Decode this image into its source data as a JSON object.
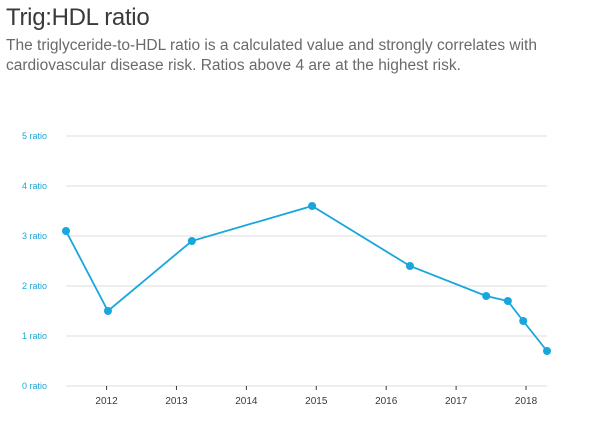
{
  "header": {
    "title": "Trig:HDL ratio",
    "subtitle": "The triglyceride-to-HDL ratio is a calculated value and strongly correlates with cardiovascular disease risk. Ratios above 4 are at the highest risk."
  },
  "colors": {
    "accent": "#17a7dc",
    "grid": "#dedede",
    "title": "#3a3a3a",
    "subtitle": "#6a6a6a"
  },
  "chart_data": {
    "type": "line",
    "title": "Trig:HDL ratio",
    "xlabel": "",
    "ylabel": "",
    "ylim": [
      0,
      5
    ],
    "xlim": [
      2011.42,
      2018.3
    ],
    "grid": true,
    "y_ticks": [
      {
        "value": 0,
        "label": "0 ratio"
      },
      {
        "value": 1,
        "label": "1 ratio"
      },
      {
        "value": 2,
        "label": "2 ratio"
      },
      {
        "value": 3,
        "label": "3 ratio"
      },
      {
        "value": 4,
        "label": "4 ratio"
      },
      {
        "value": 5,
        "label": "5 ratio"
      }
    ],
    "x_ticks": [
      {
        "value": 2012,
        "label": "2012"
      },
      {
        "value": 2013,
        "label": "2013"
      },
      {
        "value": 2014,
        "label": "2014"
      },
      {
        "value": 2015,
        "label": "2015"
      },
      {
        "value": 2016,
        "label": "2016"
      },
      {
        "value": 2017,
        "label": "2017"
      },
      {
        "value": 2018,
        "label": "2018"
      }
    ],
    "series": [
      {
        "values": [
          {
            "x": 2011.42,
            "y": 3.1
          },
          {
            "x": 2012.02,
            "y": 1.5
          },
          {
            "x": 2013.22,
            "y": 2.9
          },
          {
            "x": 2014.94,
            "y": 3.6
          },
          {
            "x": 2016.34,
            "y": 2.4
          },
          {
            "x": 2017.43,
            "y": 1.8
          },
          {
            "x": 2017.74,
            "y": 1.7
          },
          {
            "x": 2017.96,
            "y": 1.3
          },
          {
            "x": 2018.3,
            "y": 0.7
          }
        ]
      }
    ]
  }
}
